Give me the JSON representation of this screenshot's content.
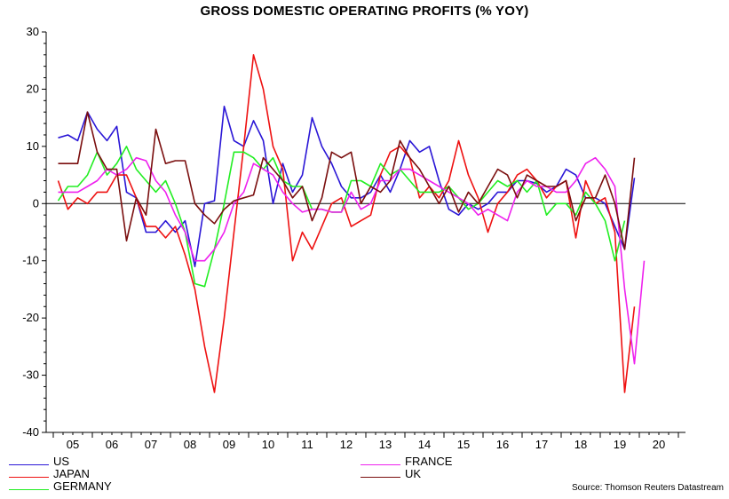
{
  "chart_data": {
    "type": "line",
    "title": "GROSS DOMESTIC OPERATING PROFITS (% YOY)",
    "source": "Source: Thomson Reuters Datastream",
    "ylim": [
      -40,
      30
    ],
    "y_ticks": [
      30,
      20,
      10,
      0,
      -10,
      -20,
      -30,
      -40
    ],
    "x_ticks": [
      "05",
      "06",
      "07",
      "08",
      "09",
      "10",
      "11",
      "12",
      "13",
      "14",
      "15",
      "16",
      "17",
      "18",
      "19",
      "20"
    ],
    "x_start": 2005.0,
    "x_step": 0.25,
    "legend_placement": "bottom",
    "grid": false,
    "series": [
      {
        "name": "US",
        "color": "#2a16d6",
        "values": [
          11.5,
          12,
          11,
          16,
          13,
          11,
          13.5,
          2,
          1,
          -5,
          -5,
          -3,
          -5,
          -3,
          -11,
          0,
          0.5,
          17,
          11,
          10,
          14.5,
          11,
          0,
          7,
          2,
          5,
          15,
          10,
          7,
          3,
          1,
          1,
          2,
          5,
          2,
          6,
          11,
          9,
          10,
          4,
          -1,
          -2,
          0,
          -1,
          0,
          2,
          2,
          4,
          4,
          3.5,
          2,
          3,
          6,
          5,
          1,
          1,
          0,
          -4,
          -8,
          4.5
        ]
      },
      {
        "name": "JAPAN",
        "color": "#ee1111",
        "values": [
          4,
          -1,
          1,
          0,
          2,
          2,
          5,
          5,
          1,
          -4,
          -4,
          -6,
          -4,
          -9,
          -15,
          -25,
          -33,
          -20,
          -5,
          10,
          26,
          20,
          10,
          6,
          -10,
          -5,
          -8,
          -4,
          0,
          1,
          -4,
          -3,
          -2,
          5,
          9,
          10,
          8,
          1,
          3,
          1,
          4,
          11,
          5,
          1,
          -5,
          0,
          2,
          5,
          6,
          4,
          1,
          3,
          4,
          -6,
          4,
          0,
          1,
          -5,
          -33,
          -18
        ]
      },
      {
        "name": "GERMANY",
        "color": "#22ee22",
        "values": [
          0.5,
          3,
          3,
          5,
          9,
          5,
          7,
          10,
          6,
          4,
          2,
          4,
          0,
          -5,
          -14,
          -14.5,
          -8,
          0,
          9,
          9,
          8,
          6,
          8,
          4,
          3,
          3,
          -1,
          -1,
          -1.5,
          -1.5,
          4,
          4,
          3,
          7,
          5,
          6,
          4,
          2,
          2,
          2,
          3,
          1,
          -1,
          0,
          2,
          4,
          3,
          4,
          2,
          4,
          -2,
          0,
          0,
          -2,
          2,
          0,
          -3,
          -10,
          -3
        ]
      },
      {
        "name": "FRANCE",
        "color": "#ee22ee",
        "values": [
          2,
          2,
          2,
          3,
          4,
          6,
          5,
          6,
          8,
          7.5,
          4,
          2,
          -2,
          -5,
          -10,
          -10,
          -8,
          -5,
          0,
          2,
          7,
          6,
          5,
          2,
          0,
          -1.5,
          -1,
          -1,
          -1.5,
          -1.5,
          2,
          -1,
          0,
          4,
          4,
          6,
          6,
          5,
          4,
          3,
          2,
          1,
          0,
          -2,
          -1,
          -2,
          -3,
          2,
          4,
          3,
          3,
          2,
          2,
          4,
          7,
          8,
          6,
          3,
          -15,
          -28,
          -10
        ]
      },
      {
        "name": "UK",
        "color": "#7a0e0e",
        "values": [
          7,
          7,
          7,
          16,
          9,
          6,
          6,
          -6.5,
          1,
          -2,
          13,
          7,
          7.5,
          7.5,
          0,
          -2,
          -3.5,
          -1,
          0.5,
          1,
          1.5,
          8,
          6,
          4,
          1,
          3,
          -3,
          1,
          9,
          8,
          9,
          0,
          3,
          2,
          4,
          11,
          8,
          6,
          3,
          0,
          3,
          -1.5,
          2,
          0,
          3,
          6,
          5,
          1,
          5,
          4,
          3,
          3,
          4,
          -3,
          1,
          1,
          5,
          0,
          -8,
          8
        ]
      }
    ]
  }
}
